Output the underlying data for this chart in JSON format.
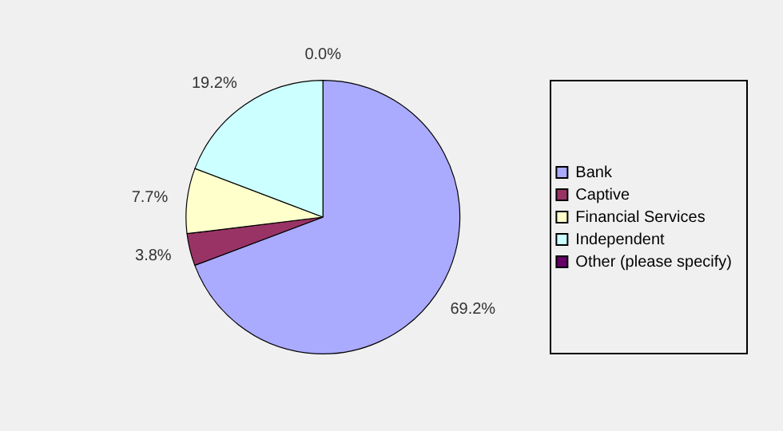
{
  "chart_data": {
    "type": "pie",
    "categories": [
      "Bank",
      "Captive",
      "Financial Services",
      "Independent",
      "Other (please specify)"
    ],
    "values": [
      69.2,
      3.8,
      7.7,
      19.2,
      0.0
    ],
    "colors": [
      "#aaaaff",
      "#993366",
      "#ffffcc",
      "#ccffff",
      "#660066"
    ],
    "value_labels": [
      "69.2%",
      "3.8%",
      "7.7%",
      "19.2%",
      "0.0%"
    ],
    "legend": "right"
  }
}
